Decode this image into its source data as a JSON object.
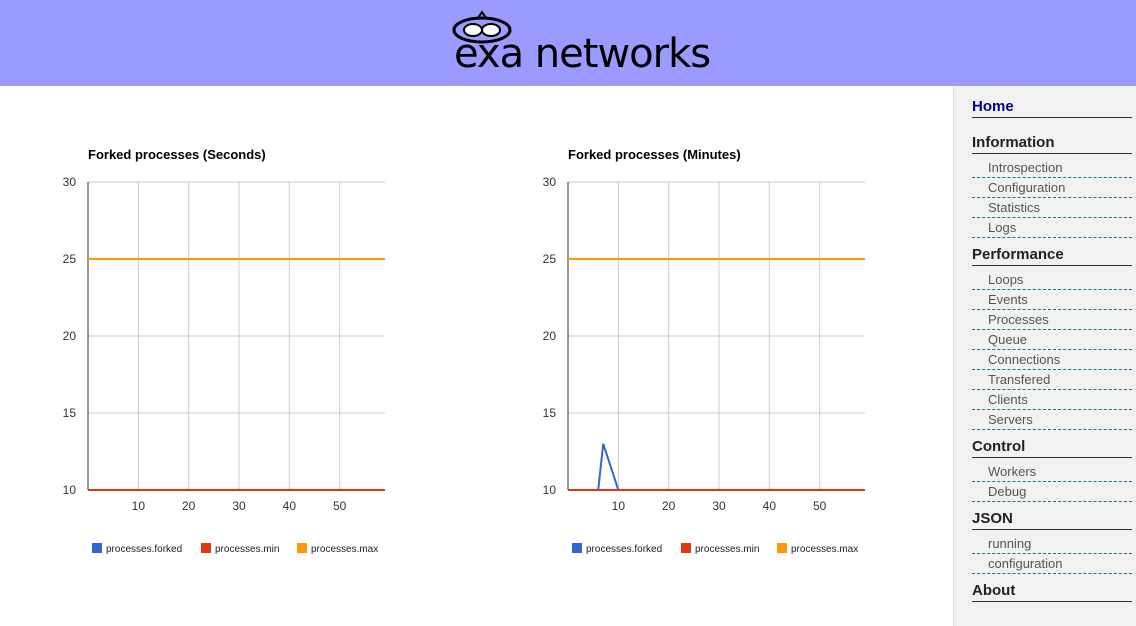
{
  "brand": {
    "name": "exa networks",
    "header_color": "#9a9aff"
  },
  "charts": [
    {
      "title": "Forked processes (Seconds)",
      "legend": [
        {
          "label": "processes.forked",
          "color": "#3366cc"
        },
        {
          "label": "processes.min",
          "color": "#dc3912"
        },
        {
          "label": "processes.max",
          "color": "#ff9900"
        }
      ]
    },
    {
      "title": "Forked processes (Minutes)",
      "legend": [
        {
          "label": "processes.forked",
          "color": "#3366cc"
        },
        {
          "label": "processes.min",
          "color": "#dc3912"
        },
        {
          "label": "processes.max",
          "color": "#ff9900"
        }
      ]
    }
  ],
  "chart_data": [
    {
      "type": "line",
      "title": "Forked processes (Seconds)",
      "xlim": [
        0,
        59
      ],
      "ylim": [
        10,
        30
      ],
      "xticks": [
        10,
        20,
        30,
        40,
        50
      ],
      "yticks": [
        10,
        15,
        20,
        25,
        30
      ],
      "grid": true,
      "legend_position": "bottom",
      "series": [
        {
          "name": "processes.forked",
          "color": "#3366cc",
          "points": []
        },
        {
          "name": "processes.min",
          "color": "#dc3912",
          "points": [
            [
              0,
              10
            ],
            [
              59,
              10
            ]
          ]
        },
        {
          "name": "processes.max",
          "color": "#ff9900",
          "points": [
            [
              0,
              25
            ],
            [
              59,
              25
            ]
          ]
        }
      ]
    },
    {
      "type": "line",
      "title": "Forked processes (Minutes)",
      "xlim": [
        0,
        59
      ],
      "ylim": [
        10,
        30
      ],
      "xticks": [
        10,
        20,
        30,
        40,
        50
      ],
      "yticks": [
        10,
        15,
        20,
        25,
        30
      ],
      "grid": true,
      "legend_position": "bottom",
      "series": [
        {
          "name": "processes.forked",
          "color": "#3366cc",
          "points": [
            [
              6,
              10
            ],
            [
              7,
              13
            ],
            [
              10,
              10
            ]
          ]
        },
        {
          "name": "processes.min",
          "color": "#dc3912",
          "points": [
            [
              0,
              10
            ],
            [
              59,
              10
            ]
          ]
        },
        {
          "name": "processes.max",
          "color": "#ff9900",
          "points": [
            [
              0,
              25
            ],
            [
              59,
              25
            ]
          ]
        }
      ]
    }
  ],
  "nav": {
    "home": "Home",
    "sections": [
      {
        "title": "Information",
        "items": [
          "Introspection",
          "Configuration",
          "Statistics",
          "Logs"
        ]
      },
      {
        "title": "Performance",
        "items": [
          "Loops",
          "Events",
          "Processes",
          "Queue",
          "Connections",
          "Transfered",
          "Clients",
          "Servers"
        ]
      },
      {
        "title": "Control",
        "items": [
          "Workers",
          "Debug"
        ]
      },
      {
        "title": "JSON",
        "items": [
          "running",
          "configuration"
        ]
      },
      {
        "title": "About",
        "items": []
      }
    ]
  }
}
